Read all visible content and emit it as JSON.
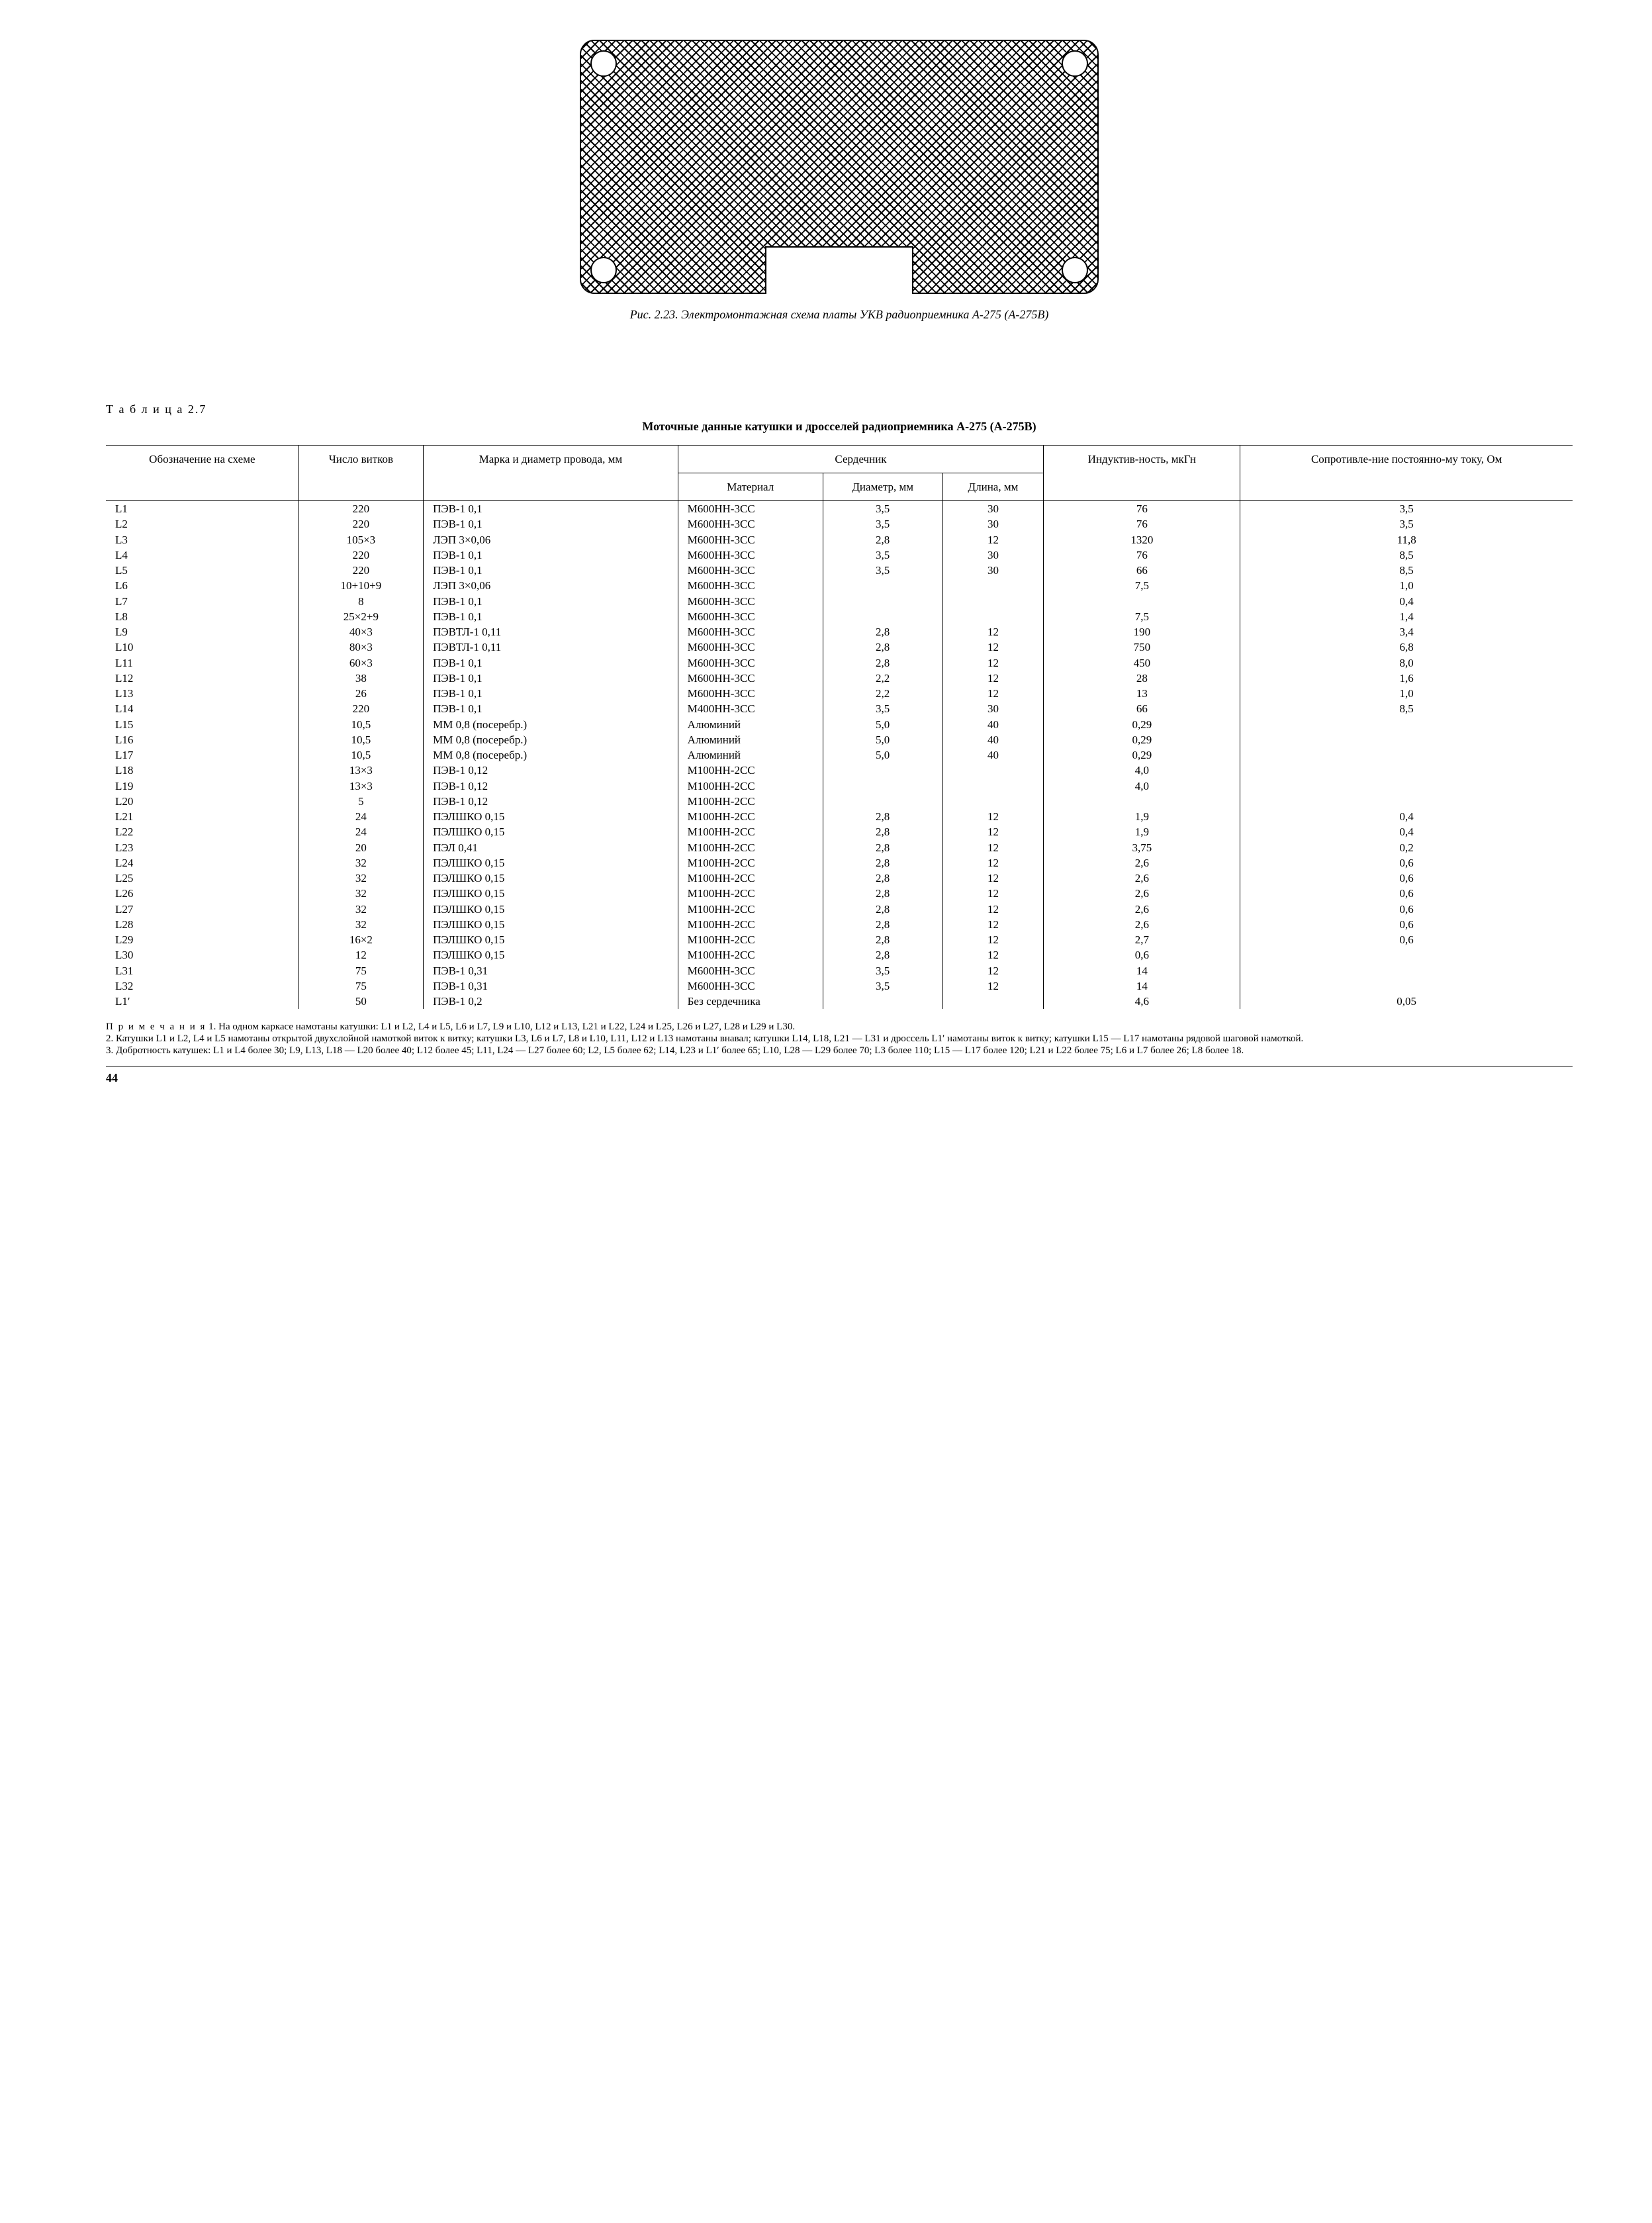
{
  "figure": {
    "caption_prefix": "Рис. 2.23.",
    "caption_text": "Электромонтажная схема платы УКВ радиоприемника А-275 (А-275В)"
  },
  "table": {
    "label": "Т а б л и ц а  2.7",
    "title": "Моточные данные катушки и дросселей радиоприемника А-275 (А-275В)",
    "headers": {
      "designation": "Обозначение на схеме",
      "turns": "Число витков",
      "wire": "Марка и диаметр провода, мм",
      "core_group": "Сердечник",
      "material": "Материал",
      "diameter": "Диаметр, мм",
      "length": "Длина, мм",
      "inductance": "Индуктив-ность, мкГн",
      "resistance": "Сопротивле-ние постоянно-му току, Ом"
    },
    "rows": [
      {
        "d": "L1",
        "t": "220",
        "w": "ПЭВ-1 0,1",
        "m": "М600НН-3СС",
        "dia": "3,5",
        "len": "30",
        "ind": "76",
        "r": "3,5"
      },
      {
        "d": "L2",
        "t": "220",
        "w": "ПЭВ-1 0,1",
        "m": "М600НН-3СС",
        "dia": "3,5",
        "len": "30",
        "ind": "76",
        "r": "3,5"
      },
      {
        "d": "L3",
        "t": "105×3",
        "w": "ЛЭП 3×0,06",
        "m": "М600НН-3СС",
        "dia": "2,8",
        "len": "12",
        "ind": "1320",
        "r": "11,8"
      },
      {
        "d": "L4",
        "t": "220",
        "w": "ПЭВ-1 0,1",
        "m": "М600НН-3СС",
        "dia": "3,5",
        "len": "30",
        "ind": "76",
        "r": "8,5"
      },
      {
        "d": "L5",
        "t": "220",
        "w": "ПЭВ-1 0,1",
        "m": "М600НН-3СС",
        "dia": "3,5",
        "len": "30",
        "ind": "66",
        "r": "8,5"
      },
      {
        "d": "L6",
        "t": "10+10+9",
        "w": "ЛЭП 3×0,06",
        "m": "М600НН-3СС",
        "dia": "",
        "len": "",
        "ind": "7,5",
        "r": "1,0"
      },
      {
        "d": "L7",
        "t": "8",
        "w": "ПЭВ-1 0,1",
        "m": "М600НН-3СС",
        "dia": "",
        "len": "",
        "ind": "",
        "r": "0,4"
      },
      {
        "d": "L8",
        "t": "25×2+9",
        "w": "ПЭВ-1 0,1",
        "m": "М600НН-3СС",
        "dia": "",
        "len": "",
        "ind": "7,5",
        "r": "1,4"
      },
      {
        "d": "L9",
        "t": "40×3",
        "w": "ПЭВТЛ-1 0,11",
        "m": "М600НН-3СС",
        "dia": "2,8",
        "len": "12",
        "ind": "190",
        "r": "3,4"
      },
      {
        "d": "L10",
        "t": "80×3",
        "w": "ПЭВТЛ-1 0,11",
        "m": "М600НН-3СС",
        "dia": "2,8",
        "len": "12",
        "ind": "750",
        "r": "6,8"
      },
      {
        "d": "L11",
        "t": "60×3",
        "w": "ПЭВ-1 0,1",
        "m": "М600НН-3СС",
        "dia": "2,8",
        "len": "12",
        "ind": "450",
        "r": "8,0"
      },
      {
        "d": "L12",
        "t": "38",
        "w": "ПЭВ-1 0,1",
        "m": "М600НН-3СС",
        "dia": "2,2",
        "len": "12",
        "ind": "28",
        "r": "1,6"
      },
      {
        "d": "L13",
        "t": "26",
        "w": "ПЭВ-1 0,1",
        "m": "М600НН-3СС",
        "dia": "2,2",
        "len": "12",
        "ind": "13",
        "r": "1,0"
      },
      {
        "d": "L14",
        "t": "220",
        "w": "ПЭВ-1 0,1",
        "m": "М400НН-3СС",
        "dia": "3,5",
        "len": "30",
        "ind": "66",
        "r": "8,5"
      },
      {
        "d": "L15",
        "t": "10,5",
        "w": "ММ 0,8 (посеребр.)",
        "m": "Алюминий",
        "dia": "5,0",
        "len": "40",
        "ind": "0,29",
        "r": ""
      },
      {
        "d": "L16",
        "t": "10,5",
        "w": "ММ 0,8 (посеребр.)",
        "m": "Алюминий",
        "dia": "5,0",
        "len": "40",
        "ind": "0,29",
        "r": ""
      },
      {
        "d": "L17",
        "t": "10,5",
        "w": "ММ 0,8 (посеребр.)",
        "m": "Алюминий",
        "dia": "5,0",
        "len": "40",
        "ind": "0,29",
        "r": ""
      },
      {
        "d": "L18",
        "t": "13×3",
        "w": "ПЭВ-1 0,12",
        "m": "М100НН-2СС",
        "dia": "",
        "len": "",
        "ind": "4,0",
        "r": ""
      },
      {
        "d": "L19",
        "t": "13×3",
        "w": "ПЭВ-1 0,12",
        "m": "М100НН-2СС",
        "dia": "",
        "len": "",
        "ind": "4,0",
        "r": ""
      },
      {
        "d": "L20",
        "t": "5",
        "w": "ПЭВ-1 0,12",
        "m": "М100НН-2СС",
        "dia": "",
        "len": "",
        "ind": "",
        "r": ""
      },
      {
        "d": "L21",
        "t": "24",
        "w": "ПЭЛШКО 0,15",
        "m": "М100НН-2СС",
        "dia": "2,8",
        "len": "12",
        "ind": "1,9",
        "r": "0,4"
      },
      {
        "d": "L22",
        "t": "24",
        "w": "ПЭЛШКО 0,15",
        "m": "М100НН-2СС",
        "dia": "2,8",
        "len": "12",
        "ind": "1,9",
        "r": "0,4"
      },
      {
        "d": "L23",
        "t": "20",
        "w": "ПЭЛ 0,41",
        "m": "М100НН-2СС",
        "dia": "2,8",
        "len": "12",
        "ind": "3,75",
        "r": "0,2"
      },
      {
        "d": "L24",
        "t": "32",
        "w": "ПЭЛШКО 0,15",
        "m": "М100НН-2СС",
        "dia": "2,8",
        "len": "12",
        "ind": "2,6",
        "r": "0,6"
      },
      {
        "d": "L25",
        "t": "32",
        "w": "ПЭЛШКО 0,15",
        "m": "М100НН-2СС",
        "dia": "2,8",
        "len": "12",
        "ind": "2,6",
        "r": "0,6"
      },
      {
        "d": "L26",
        "t": "32",
        "w": "ПЭЛШКО 0,15",
        "m": "М100НН-2СС",
        "dia": "2,8",
        "len": "12",
        "ind": "2,6",
        "r": "0,6"
      },
      {
        "d": "L27",
        "t": "32",
        "w": "ПЭЛШКО 0,15",
        "m": "М100НН-2СС",
        "dia": "2,8",
        "len": "12",
        "ind": "2,6",
        "r": "0,6"
      },
      {
        "d": "L28",
        "t": "32",
        "w": "ПЭЛШКО 0,15",
        "m": "М100НН-2СС",
        "dia": "2,8",
        "len": "12",
        "ind": "2,6",
        "r": "0,6"
      },
      {
        "d": "L29",
        "t": "16×2",
        "w": "ПЭЛШКО 0,15",
        "m": "М100НН-2СС",
        "dia": "2,8",
        "len": "12",
        "ind": "2,7",
        "r": "0,6"
      },
      {
        "d": "L30",
        "t": "12",
        "w": "ПЭЛШКО 0,15",
        "m": "М100НН-2СС",
        "dia": "2,8",
        "len": "12",
        "ind": "0,6",
        "r": ""
      },
      {
        "d": "L31",
        "t": "75",
        "w": "ПЭВ-1 0,31",
        "m": "М600НН-3СС",
        "dia": "3,5",
        "len": "12",
        "ind": "14",
        "r": ""
      },
      {
        "d": "L32",
        "t": "75",
        "w": "ПЭВ-1 0,31",
        "m": "М600НН-3СС",
        "dia": "3,5",
        "len": "12",
        "ind": "14",
        "r": ""
      },
      {
        "d": "L1′",
        "t": "50",
        "w": "ПЭВ-1 0,2",
        "m": "Без сердечника",
        "dia": "",
        "len": "",
        "ind": "4,6",
        "r": "0,05"
      }
    ]
  },
  "notes": {
    "lead": "П р и м е ч а н и я",
    "n1": "1. На одном каркасе намотаны катушки: L1 и L2, L4 и L5, L6 и L7, L9 и L10, L12 и L13, L21 и L22, L24 и L25, L26 и L27, L28 и L29 и L30.",
    "n2": "2. Катушки L1 и L2, L4 и L5 намотаны открытой двухслойной намоткой виток к витку; катушки L3, L6 и L7, L8 и L10, L11, L12 и L13 намотаны внавал; катушки L14, L18, L21 — L31 и дроссель L1′ намотаны виток к витку; катушки L15 — L17 намотаны рядовой шаговой намоткой.",
    "n3": "3. Добротность катушек: L1 и L4 более 30; L9, L13, L18 — L20 более 40; L12 более 45; L11, L24 — L27 более 60; L2, L5 более 62; L14, L23 и L1′ более 65; L10, L28 — L29 более 70; L3 более 110; L15 — L17 более 120; L21 и L22 более 75; L6 и L7 более 26; L8 более 18."
  },
  "page_number": "44"
}
